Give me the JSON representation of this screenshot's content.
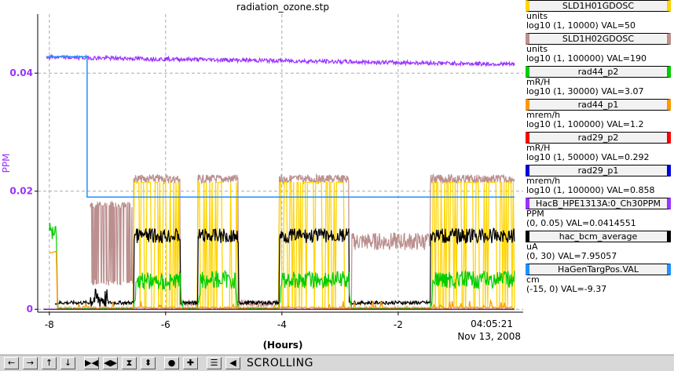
{
  "chart_data": {
    "type": "line",
    "title": "radiation_ozone.stp",
    "xlabel": "(Hours)",
    "ylabel": "PPM",
    "xlim": [
      -8.2,
      0.15
    ],
    "ylim": [
      -0.0005,
      0.05
    ],
    "x_ticks": [
      {
        "value": -8,
        "label": "-8"
      },
      {
        "value": -6,
        "label": "-6"
      },
      {
        "value": -4,
        "label": "-4"
      },
      {
        "value": -2,
        "label": "-2"
      }
    ],
    "y_ticks": [
      {
        "value": 0,
        "label": "0"
      },
      {
        "value": 0.02,
        "label": "0.02"
      },
      {
        "value": 0.04,
        "label": "0.04"
      }
    ],
    "end_time": "04:05:21",
    "end_date": "Nov 13, 2008",
    "grid": true,
    "legend_position": "right",
    "series": [
      {
        "name": "SLD1H01GDOSC",
        "color": "#ffd400",
        "unit": "units",
        "scale": "log10 (1, 10000) VAL=50",
        "segments": [
          [
            -6.55,
            -5.75
          ],
          [
            -5.45,
            -4.75
          ],
          [
            -4.05,
            -2.85
          ],
          [
            -1.45,
            0
          ]
        ],
        "level_on": 0.0215,
        "level_off": 0.0002
      },
      {
        "name": "SLD1H02GDOSC",
        "color": "#bc8f8f",
        "unit": "units",
        "scale": "log10 (1, 100000) VAL=190",
        "segments": [
          [
            -6.55,
            -5.75
          ],
          [
            -5.45,
            -4.75
          ],
          [
            -4.05,
            -2.85
          ],
          [
            -1.45,
            0
          ]
        ],
        "level_on": 0.0228,
        "level_mid": 0.0172,
        "level_low": 0.01
      },
      {
        "name": "rad44_p2",
        "color": "#00cc00",
        "unit": "mR/H",
        "scale": "log10 (1, 30000) VAL=3.07",
        "points": [
          [
            -8.0,
            0.0148
          ],
          [
            -7.88,
            0.015
          ],
          [
            -7.85,
            0.0001
          ],
          [
            -6.55,
            0.0001
          ],
          [
            -6.5,
            0.0065
          ],
          [
            -6.0,
            0.006
          ],
          [
            -5.75,
            0.0065
          ],
          [
            -5.7,
            0.0001
          ],
          [
            -5.45,
            0.0001
          ],
          [
            -5.4,
            0.0065
          ],
          [
            -4.8,
            0.0065
          ],
          [
            -4.75,
            0.0001
          ],
          [
            -4.05,
            0.0001
          ],
          [
            -4.0,
            0.0065
          ],
          [
            -2.85,
            0.0065
          ],
          [
            -2.8,
            0.0001
          ],
          [
            -1.45,
            0.0001
          ],
          [
            -1.4,
            0.0065
          ],
          [
            0.0,
            0.0065
          ]
        ]
      },
      {
        "name": "rad44_p1",
        "color": "#ff9900",
        "unit": "mrem/h",
        "scale": "log10 (1, 100000) VAL=1.2",
        "points": [
          [
            -8.0,
            0.0095
          ],
          [
            -7.88,
            0.0098
          ],
          [
            -7.86,
            0.0001
          ],
          [
            -0.0,
            0.0003
          ]
        ]
      },
      {
        "name": "rad29_p2",
        "color": "#ff0000",
        "unit": "mR/H",
        "scale": "log10 (1, 50000) VAL=0.292",
        "points": [
          [
            -8.1,
            0.0
          ],
          [
            0.0,
            0.0
          ]
        ]
      },
      {
        "name": "rad29_p1",
        "color": "#0000dd",
        "unit": "mrem/h",
        "scale": "log10 (1, 100000) VAL=0.858",
        "points": [
          [
            -8.1,
            0.0
          ],
          [
            0.0,
            0.0
          ]
        ]
      },
      {
        "name": "HacB_HPE1313A:0_Ch30PPM",
        "color": "#9933ff",
        "unit": "PPM",
        "scale": "(0, 0.05) VAL=0.0414551",
        "points": [
          [
            -8.05,
            0.0427
          ],
          [
            -6.0,
            0.0425
          ],
          [
            -4.0,
            0.0422
          ],
          [
            -2.0,
            0.042
          ],
          [
            0.0,
            0.0415
          ]
        ]
      },
      {
        "name": "hac_bcm_average",
        "color": "#000000",
        "unit": "uA",
        "scale": "(0, 30) VAL=7.95057",
        "segments": [
          [
            -6.55,
            -5.75
          ],
          [
            -5.45,
            -4.75
          ],
          [
            -4.05,
            -2.85
          ],
          [
            -1.45,
            0
          ]
        ],
        "level_on": 0.0137,
        "level_off": 0.0008
      },
      {
        "name": "HaGenTargPos.VAL",
        "color": "#1e90ff",
        "unit": "cm",
        "scale": "(-15, 0) VAL=-9.37",
        "points": [
          [
            -8.05,
            0.0428
          ],
          [
            -7.35,
            0.0428
          ],
          [
            -7.35,
            0.019
          ],
          [
            0.0,
            0.019
          ]
        ]
      }
    ]
  },
  "toolbar": {
    "status": "SCROLLING",
    "buttons": [
      {
        "name": "scroll-left-button",
        "glyph": "←"
      },
      {
        "name": "scroll-right-button",
        "glyph": "→"
      },
      {
        "name": "scroll-up-button",
        "glyph": "↑"
      },
      {
        "name": "scroll-down-button",
        "glyph": "↓"
      },
      {
        "name": "zoom-in-x-button",
        "glyph": "▶◀"
      },
      {
        "name": "zoom-out-x-button",
        "glyph": "◀▶"
      },
      {
        "name": "zoom-in-y-button",
        "glyph": "⧗"
      },
      {
        "name": "zoom-out-y-button",
        "glyph": "⬍"
      },
      {
        "name": "record-button",
        "glyph": "●"
      },
      {
        "name": "crosshair-button",
        "glyph": "✚"
      },
      {
        "name": "autoscale-button",
        "glyph": "☰"
      },
      {
        "name": "scroll-mode-button",
        "glyph": "◀"
      }
    ]
  }
}
